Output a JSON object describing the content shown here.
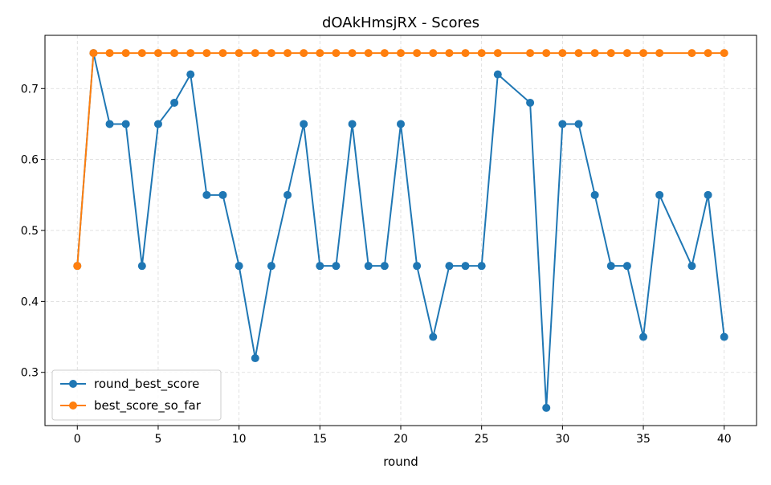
{
  "chart_data": {
    "type": "line",
    "title": "dOAkHmsjRX - Scores",
    "xlabel": "round",
    "ylabel": "",
    "xlim": [
      -2,
      42
    ],
    "ylim": [
      0.225,
      0.775
    ],
    "xticks": [
      0,
      5,
      10,
      15,
      20,
      25,
      30,
      35,
      40
    ],
    "yticks": [
      0.3,
      0.4,
      0.5,
      0.6,
      0.7
    ],
    "grid": true,
    "legend": "bottom-left",
    "series": [
      {
        "name": "round_best_score",
        "color": "#1f77b4",
        "x": [
          0,
          1,
          2,
          3,
          4,
          5,
          6,
          7,
          8,
          9,
          10,
          11,
          12,
          13,
          14,
          15,
          16,
          17,
          18,
          19,
          20,
          21,
          22,
          23,
          24,
          25,
          26,
          28,
          29,
          30,
          31,
          32,
          33,
          34,
          35,
          36,
          38,
          39,
          40
        ],
        "y": [
          0.45,
          0.75,
          0.65,
          0.65,
          0.45,
          0.65,
          0.68,
          0.72,
          0.55,
          0.55,
          0.45,
          0.32,
          0.45,
          0.55,
          0.65,
          0.45,
          0.45,
          0.65,
          0.45,
          0.45,
          0.65,
          0.45,
          0.35,
          0.45,
          0.45,
          0.45,
          0.72,
          0.68,
          0.25,
          0.65,
          0.65,
          0.55,
          0.45,
          0.45,
          0.35,
          0.55,
          0.45,
          0.55,
          0.35
        ]
      },
      {
        "name": "best_score_so_far",
        "color": "#ff7f0e",
        "x": [
          0,
          1,
          2,
          3,
          4,
          5,
          6,
          7,
          8,
          9,
          10,
          11,
          12,
          13,
          14,
          15,
          16,
          17,
          18,
          19,
          20,
          21,
          22,
          23,
          24,
          25,
          26,
          28,
          29,
          30,
          31,
          32,
          33,
          34,
          35,
          36,
          38,
          39,
          40
        ],
        "y": [
          0.45,
          0.75,
          0.75,
          0.75,
          0.75,
          0.75,
          0.75,
          0.75,
          0.75,
          0.75,
          0.75,
          0.75,
          0.75,
          0.75,
          0.75,
          0.75,
          0.75,
          0.75,
          0.75,
          0.75,
          0.75,
          0.75,
          0.75,
          0.75,
          0.75,
          0.75,
          0.75,
          0.75,
          0.75,
          0.75,
          0.75,
          0.75,
          0.75,
          0.75,
          0.75,
          0.75,
          0.75,
          0.75,
          0.75
        ]
      }
    ]
  }
}
